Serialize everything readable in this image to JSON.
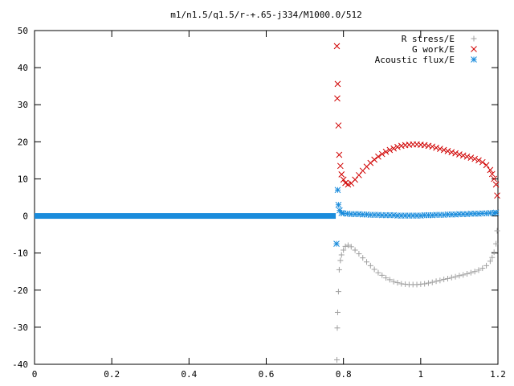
{
  "chart_data": {
    "type": "scatter",
    "title": "m1/n1.5/q1.5/r-+.65-j334/M1000.0/512",
    "xlabel": "",
    "ylabel": "",
    "xlim": [
      0,
      1.2
    ],
    "ylim": [
      -40,
      50
    ],
    "x_ticks": [
      0,
      0.2,
      0.4,
      0.6,
      0.8,
      1,
      1.2
    ],
    "x_tick_labels": [
      "0",
      "0.2",
      "0.4",
      "0.6",
      "0.8",
      "1",
      "1.2"
    ],
    "y_ticks": [
      -40,
      -30,
      -20,
      -10,
      0,
      10,
      20,
      30,
      40,
      50
    ],
    "y_tick_labels": [
      "-40",
      "-30",
      "-20",
      "-10",
      "0",
      "10",
      "20",
      "30",
      "40",
      "50"
    ],
    "grid": false,
    "legend_position": "top-right",
    "series": [
      {
        "name": "R stress/E",
        "marker": "plus",
        "color": "#a0a0a0",
        "points": [
          [
            0.783,
            -38.8
          ],
          [
            0.784,
            -30.2
          ],
          [
            0.785,
            -26.0
          ],
          [
            0.787,
            -20.4
          ],
          [
            0.789,
            -14.5
          ],
          [
            0.792,
            -12.0
          ],
          [
            0.795,
            -10.5
          ],
          [
            0.8,
            -9.2
          ],
          [
            0.805,
            -8.2
          ],
          [
            0.812,
            -7.9
          ],
          [
            0.82,
            -8.3
          ],
          [
            0.83,
            -9.2
          ],
          [
            0.84,
            -10.2
          ],
          [
            0.85,
            -11.3
          ],
          [
            0.86,
            -12.4
          ],
          [
            0.87,
            -13.4
          ],
          [
            0.88,
            -14.4
          ],
          [
            0.89,
            -15.3
          ],
          [
            0.9,
            -16.0
          ],
          [
            0.91,
            -16.7
          ],
          [
            0.92,
            -17.2
          ],
          [
            0.93,
            -17.7
          ],
          [
            0.94,
            -18.0
          ],
          [
            0.95,
            -18.3
          ],
          [
            0.96,
            -18.4
          ],
          [
            0.97,
            -18.5
          ],
          [
            0.98,
            -18.5
          ],
          [
            0.99,
            -18.5
          ],
          [
            1.0,
            -18.4
          ],
          [
            1.01,
            -18.3
          ],
          [
            1.02,
            -18.1
          ],
          [
            1.03,
            -17.9
          ],
          [
            1.04,
            -17.6
          ],
          [
            1.05,
            -17.4
          ],
          [
            1.06,
            -17.1
          ],
          [
            1.07,
            -16.9
          ],
          [
            1.08,
            -16.6
          ],
          [
            1.09,
            -16.4
          ],
          [
            1.1,
            -16.1
          ],
          [
            1.11,
            -15.9
          ],
          [
            1.12,
            -15.6
          ],
          [
            1.13,
            -15.3
          ],
          [
            1.14,
            -15.0
          ],
          [
            1.15,
            -14.6
          ],
          [
            1.16,
            -14.1
          ],
          [
            1.17,
            -13.4
          ],
          [
            1.18,
            -12.2
          ],
          [
            1.185,
            -11.2
          ],
          [
            1.19,
            -9.8
          ],
          [
            1.195,
            -7.5
          ],
          [
            1.198,
            -4.0
          ]
        ]
      },
      {
        "name": "G work/E",
        "marker": "x",
        "color": "#d00000",
        "points": [
          [
            0.783,
            45.8
          ],
          [
            0.784,
            31.7
          ],
          [
            0.785,
            35.6
          ],
          [
            0.787,
            24.4
          ],
          [
            0.789,
            16.5
          ],
          [
            0.792,
            13.5
          ],
          [
            0.795,
            11.2
          ],
          [
            0.8,
            9.8
          ],
          [
            0.805,
            8.9
          ],
          [
            0.812,
            8.5
          ],
          [
            0.82,
            8.8
          ],
          [
            0.83,
            9.8
          ],
          [
            0.84,
            11.0
          ],
          [
            0.85,
            12.2
          ],
          [
            0.86,
            13.3
          ],
          [
            0.87,
            14.3
          ],
          [
            0.88,
            15.2
          ],
          [
            0.89,
            16.0
          ],
          [
            0.9,
            16.7
          ],
          [
            0.91,
            17.3
          ],
          [
            0.92,
            17.8
          ],
          [
            0.93,
            18.2
          ],
          [
            0.94,
            18.6
          ],
          [
            0.95,
            18.9
          ],
          [
            0.96,
            19.1
          ],
          [
            0.97,
            19.2
          ],
          [
            0.98,
            19.3
          ],
          [
            0.99,
            19.3
          ],
          [
            1.0,
            19.2
          ],
          [
            1.01,
            19.1
          ],
          [
            1.02,
            18.9
          ],
          [
            1.03,
            18.7
          ],
          [
            1.04,
            18.4
          ],
          [
            1.05,
            18.1
          ],
          [
            1.06,
            17.8
          ],
          [
            1.07,
            17.5
          ],
          [
            1.08,
            17.2
          ],
          [
            1.09,
            16.9
          ],
          [
            1.1,
            16.6
          ],
          [
            1.11,
            16.3
          ],
          [
            1.12,
            16.0
          ],
          [
            1.13,
            15.7
          ],
          [
            1.14,
            15.4
          ],
          [
            1.15,
            15.0
          ],
          [
            1.16,
            14.5
          ],
          [
            1.17,
            13.7
          ],
          [
            1.18,
            12.4
          ],
          [
            1.185,
            11.3
          ],
          [
            1.19,
            10.0
          ],
          [
            1.195,
            8.5
          ],
          [
            1.198,
            5.5
          ]
        ]
      },
      {
        "name": "Acoustic flux/E",
        "marker": "star",
        "color": "#1a8cdc",
        "points": [
          [
            0.782,
            -7.5
          ],
          [
            0.785,
            7.0
          ],
          [
            0.787,
            3.0
          ],
          [
            0.79,
            1.5
          ],
          [
            0.795,
            0.8
          ],
          [
            0.8,
            0.7
          ],
          [
            0.81,
            0.6
          ],
          [
            0.82,
            0.5
          ],
          [
            0.83,
            0.5
          ],
          [
            0.84,
            0.5
          ],
          [
            0.85,
            0.4
          ],
          [
            0.86,
            0.4
          ],
          [
            0.87,
            0.3
          ],
          [
            0.88,
            0.3
          ],
          [
            0.89,
            0.3
          ],
          [
            0.9,
            0.2
          ],
          [
            0.91,
            0.2
          ],
          [
            0.92,
            0.2
          ],
          [
            0.93,
            0.2
          ],
          [
            0.94,
            0.1
          ],
          [
            0.95,
            0.1
          ],
          [
            0.96,
            0.1
          ],
          [
            0.97,
            0.1
          ],
          [
            0.98,
            0.1
          ],
          [
            0.99,
            0.1
          ],
          [
            1.0,
            0.1
          ],
          [
            1.01,
            0.2
          ],
          [
            1.02,
            0.2
          ],
          [
            1.03,
            0.2
          ],
          [
            1.04,
            0.3
          ],
          [
            1.05,
            0.3
          ],
          [
            1.06,
            0.3
          ],
          [
            1.07,
            0.4
          ],
          [
            1.08,
            0.4
          ],
          [
            1.09,
            0.4
          ],
          [
            1.1,
            0.5
          ],
          [
            1.11,
            0.5
          ],
          [
            1.12,
            0.5
          ],
          [
            1.13,
            0.6
          ],
          [
            1.14,
            0.6
          ],
          [
            1.15,
            0.6
          ],
          [
            1.16,
            0.7
          ],
          [
            1.17,
            0.7
          ],
          [
            1.18,
            0.8
          ],
          [
            1.19,
            0.8
          ],
          [
            1.195,
            0.9
          ]
        ],
        "constant_segment": {
          "x_range": [
            0,
            0.78
          ],
          "y": 0.0
        }
      }
    ]
  }
}
